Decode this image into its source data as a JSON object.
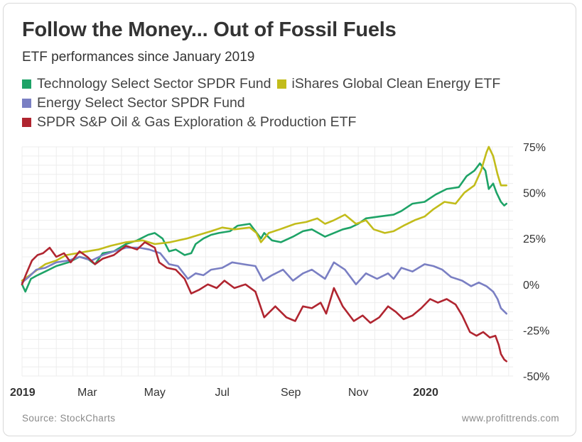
{
  "title": "Follow the Money... Out of Fossil Fuels",
  "subtitle": "ETF performances since January 2019",
  "footer": {
    "source": "Source: StockCharts",
    "website": "www.profittrends.com"
  },
  "chart_data": {
    "type": "line",
    "title": "Follow the Money... Out of Fossil Fuels",
    "subtitle": "ETF performances since January 2019",
    "legend_placement": "top-left",
    "grid": true,
    "xlim": [
      "2019-01-01",
      "2020-03-20"
    ],
    "ylim": [
      -50,
      75
    ],
    "x_ticks": [
      {
        "date": "2019-01-01",
        "label": "2019",
        "bold": true
      },
      {
        "date": "2019-03-01",
        "label": "Mar",
        "bold": false
      },
      {
        "date": "2019-05-01",
        "label": "May",
        "bold": false
      },
      {
        "date": "2019-07-01",
        "label": "Jul",
        "bold": false
      },
      {
        "date": "2019-09-01",
        "label": "Sep",
        "bold": false
      },
      {
        "date": "2019-11-01",
        "label": "Nov",
        "bold": false
      },
      {
        "date": "2020-01-01",
        "label": "2020",
        "bold": true
      }
    ],
    "y_ticks": [
      {
        "value": 75,
        "label": "75%"
      },
      {
        "value": 50,
        "label": "50%"
      },
      {
        "value": 25,
        "label": "25%"
      },
      {
        "value": 0,
        "label": "0%"
      },
      {
        "value": -25,
        "label": "-25%"
      },
      {
        "value": -50,
        "label": "-50%"
      }
    ],
    "series": [
      {
        "name": "Technology Select Sector SPDR Fund",
        "color": "#1ea367",
        "points": [
          [
            "2019-01-01",
            0
          ],
          [
            "2019-01-04",
            -4
          ],
          [
            "2019-01-09",
            3
          ],
          [
            "2019-01-15",
            5
          ],
          [
            "2019-01-22",
            7
          ],
          [
            "2019-02-01",
            10
          ],
          [
            "2019-02-12",
            12
          ],
          [
            "2019-02-22",
            15
          ],
          [
            "2019-03-01",
            14
          ],
          [
            "2019-03-08",
            11
          ],
          [
            "2019-03-15",
            17
          ],
          [
            "2019-03-25",
            18
          ],
          [
            "2019-04-05",
            22
          ],
          [
            "2019-04-15",
            24
          ],
          [
            "2019-04-25",
            27
          ],
          [
            "2019-05-01",
            28
          ],
          [
            "2019-05-08",
            25
          ],
          [
            "2019-05-14",
            18
          ],
          [
            "2019-05-20",
            19
          ],
          [
            "2019-05-28",
            16
          ],
          [
            "2019-06-03",
            17
          ],
          [
            "2019-06-07",
            22
          ],
          [
            "2019-06-14",
            25
          ],
          [
            "2019-06-21",
            27
          ],
          [
            "2019-06-28",
            28
          ],
          [
            "2019-07-08",
            29
          ],
          [
            "2019-07-15",
            32
          ],
          [
            "2019-07-26",
            33
          ],
          [
            "2019-08-05",
            25
          ],
          [
            "2019-08-08",
            28
          ],
          [
            "2019-08-15",
            24
          ],
          [
            "2019-08-23",
            23
          ],
          [
            "2019-09-03",
            26
          ],
          [
            "2019-09-12",
            29
          ],
          [
            "2019-09-20",
            30
          ],
          [
            "2019-10-02",
            26
          ],
          [
            "2019-10-10",
            28
          ],
          [
            "2019-10-18",
            30
          ],
          [
            "2019-10-25",
            31
          ],
          [
            "2019-11-01",
            33
          ],
          [
            "2019-11-08",
            36
          ],
          [
            "2019-11-20",
            37
          ],
          [
            "2019-12-03",
            38
          ],
          [
            "2019-12-10",
            40
          ],
          [
            "2019-12-20",
            44
          ],
          [
            "2019-12-31",
            45
          ],
          [
            "2020-01-10",
            49
          ],
          [
            "2020-01-20",
            52
          ],
          [
            "2020-01-31",
            53
          ],
          [
            "2020-02-07",
            59
          ],
          [
            "2020-02-14",
            62
          ],
          [
            "2020-02-19",
            66
          ],
          [
            "2020-02-24",
            62
          ],
          [
            "2020-02-27",
            52
          ],
          [
            "2020-03-02",
            55
          ],
          [
            "2020-03-05",
            50
          ],
          [
            "2020-03-09",
            45
          ],
          [
            "2020-03-12",
            43
          ],
          [
            "2020-03-14",
            44
          ]
        ]
      },
      {
        "name": "iShares Global Clean Energy ETF",
        "color": "#c2bc1a",
        "points": [
          [
            "2019-01-01",
            2
          ],
          [
            "2019-01-08",
            5
          ],
          [
            "2019-01-15",
            8
          ],
          [
            "2019-01-22",
            11
          ],
          [
            "2019-02-01",
            13
          ],
          [
            "2019-02-10",
            16
          ],
          [
            "2019-02-20",
            17
          ],
          [
            "2019-03-01",
            18
          ],
          [
            "2019-03-11",
            19
          ],
          [
            "2019-03-22",
            21
          ],
          [
            "2019-04-05",
            23
          ],
          [
            "2019-04-20",
            24
          ],
          [
            "2019-05-01",
            22
          ],
          [
            "2019-05-15",
            23
          ],
          [
            "2019-05-30",
            25
          ],
          [
            "2019-06-10",
            27
          ],
          [
            "2019-06-21",
            29
          ],
          [
            "2019-07-01",
            31
          ],
          [
            "2019-07-12",
            30
          ],
          [
            "2019-07-26",
            31
          ],
          [
            "2019-08-01",
            28
          ],
          [
            "2019-08-05",
            23
          ],
          [
            "2019-08-12",
            28
          ],
          [
            "2019-08-22",
            30
          ],
          [
            "2019-09-05",
            33
          ],
          [
            "2019-09-15",
            34
          ],
          [
            "2019-09-25",
            36
          ],
          [
            "2019-10-02",
            33
          ],
          [
            "2019-10-10",
            35
          ],
          [
            "2019-10-20",
            38
          ],
          [
            "2019-10-30",
            33
          ],
          [
            "2019-11-08",
            35
          ],
          [
            "2019-11-15",
            30
          ],
          [
            "2019-11-25",
            28
          ],
          [
            "2019-12-03",
            29
          ],
          [
            "2019-12-12",
            32
          ],
          [
            "2019-12-22",
            35
          ],
          [
            "2019-12-31",
            37
          ],
          [
            "2020-01-08",
            41
          ],
          [
            "2020-01-18",
            45
          ],
          [
            "2020-01-28",
            44
          ],
          [
            "2020-02-05",
            50
          ],
          [
            "2020-02-14",
            54
          ],
          [
            "2020-02-20",
            62
          ],
          [
            "2020-02-25",
            72
          ],
          [
            "2020-02-27",
            75
          ],
          [
            "2020-03-02",
            70
          ],
          [
            "2020-03-06",
            60
          ],
          [
            "2020-03-09",
            54
          ],
          [
            "2020-03-14",
            54
          ]
        ]
      },
      {
        "name": "Energy Select Sector SPDR Fund",
        "color": "#7a7fc3",
        "points": [
          [
            "2019-01-01",
            1
          ],
          [
            "2019-01-07",
            4
          ],
          [
            "2019-01-14",
            8
          ],
          [
            "2019-01-22",
            9
          ],
          [
            "2019-02-01",
            12
          ],
          [
            "2019-02-12",
            13
          ],
          [
            "2019-02-22",
            15
          ],
          [
            "2019-03-05",
            13
          ],
          [
            "2019-03-15",
            16
          ],
          [
            "2019-03-25",
            18
          ],
          [
            "2019-04-05",
            20
          ],
          [
            "2019-04-17",
            20
          ],
          [
            "2019-04-26",
            19
          ],
          [
            "2019-05-06",
            17
          ],
          [
            "2019-05-14",
            11
          ],
          [
            "2019-05-22",
            10
          ],
          [
            "2019-05-31",
            3
          ],
          [
            "2019-06-07",
            6
          ],
          [
            "2019-06-14",
            5
          ],
          [
            "2019-06-21",
            8
          ],
          [
            "2019-07-01",
            9
          ],
          [
            "2019-07-10",
            12
          ],
          [
            "2019-07-20",
            11
          ],
          [
            "2019-07-31",
            10
          ],
          [
            "2019-08-07",
            2
          ],
          [
            "2019-08-15",
            5
          ],
          [
            "2019-08-25",
            8
          ],
          [
            "2019-09-03",
            2
          ],
          [
            "2019-09-12",
            6
          ],
          [
            "2019-09-20",
            8
          ],
          [
            "2019-10-02",
            3
          ],
          [
            "2019-10-10",
            12
          ],
          [
            "2019-10-20",
            8
          ],
          [
            "2019-10-30",
            0
          ],
          [
            "2019-11-08",
            6
          ],
          [
            "2019-11-18",
            3
          ],
          [
            "2019-11-28",
            6
          ],
          [
            "2019-12-03",
            3
          ],
          [
            "2019-12-10",
            9
          ],
          [
            "2019-12-20",
            7
          ],
          [
            "2019-12-31",
            11
          ],
          [
            "2020-01-08",
            10
          ],
          [
            "2020-01-16",
            8
          ],
          [
            "2020-01-24",
            4
          ],
          [
            "2020-02-03",
            2
          ],
          [
            "2020-02-11",
            -1
          ],
          [
            "2020-02-18",
            1
          ],
          [
            "2020-02-25",
            -1
          ],
          [
            "2020-03-02",
            -4
          ],
          [
            "2020-03-06",
            -8
          ],
          [
            "2020-03-09",
            -13
          ],
          [
            "2020-03-14",
            -16
          ]
        ]
      },
      {
        "name": "SPDR S&P Oil & Gas Exploration & Production ETF",
        "color": "#b02530",
        "points": [
          [
            "2019-01-01",
            0
          ],
          [
            "2019-01-05",
            6
          ],
          [
            "2019-01-10",
            13
          ],
          [
            "2019-01-15",
            16
          ],
          [
            "2019-01-20",
            17
          ],
          [
            "2019-01-26",
            20
          ],
          [
            "2019-02-01",
            15
          ],
          [
            "2019-02-08",
            17
          ],
          [
            "2019-02-14",
            12
          ],
          [
            "2019-02-22",
            18
          ],
          [
            "2019-03-01",
            15
          ],
          [
            "2019-03-08",
            11
          ],
          [
            "2019-03-15",
            14
          ],
          [
            "2019-03-25",
            16
          ],
          [
            "2019-04-05",
            21
          ],
          [
            "2019-04-15",
            19
          ],
          [
            "2019-04-22",
            23
          ],
          [
            "2019-05-01",
            20
          ],
          [
            "2019-05-05",
            12
          ],
          [
            "2019-05-12",
            9
          ],
          [
            "2019-05-20",
            8
          ],
          [
            "2019-05-28",
            3
          ],
          [
            "2019-06-03",
            -5
          ],
          [
            "2019-06-10",
            -3
          ],
          [
            "2019-06-18",
            0
          ],
          [
            "2019-06-26",
            -2
          ],
          [
            "2019-07-03",
            2
          ],
          [
            "2019-07-12",
            -2
          ],
          [
            "2019-07-22",
            0
          ],
          [
            "2019-07-31",
            -4
          ],
          [
            "2019-08-08",
            -18
          ],
          [
            "2019-08-18",
            -12
          ],
          [
            "2019-08-28",
            -18
          ],
          [
            "2019-09-05",
            -20
          ],
          [
            "2019-09-12",
            -12
          ],
          [
            "2019-09-20",
            -13
          ],
          [
            "2019-09-28",
            -10
          ],
          [
            "2019-10-03",
            -16
          ],
          [
            "2019-10-10",
            -2
          ],
          [
            "2019-10-18",
            -12
          ],
          [
            "2019-10-28",
            -20
          ],
          [
            "2019-11-05",
            -17
          ],
          [
            "2019-11-12",
            -21
          ],
          [
            "2019-11-20",
            -18
          ],
          [
            "2019-11-28",
            -12
          ],
          [
            "2019-12-05",
            -15
          ],
          [
            "2019-12-12",
            -19
          ],
          [
            "2019-12-20",
            -17
          ],
          [
            "2019-12-28",
            -13
          ],
          [
            "2020-01-05",
            -8
          ],
          [
            "2020-01-12",
            -10
          ],
          [
            "2020-01-20",
            -8
          ],
          [
            "2020-01-28",
            -11
          ],
          [
            "2020-02-03",
            -17
          ],
          [
            "2020-02-10",
            -26
          ],
          [
            "2020-02-16",
            -28
          ],
          [
            "2020-02-22",
            -26
          ],
          [
            "2020-02-28",
            -29
          ],
          [
            "2020-03-04",
            -28
          ],
          [
            "2020-03-07",
            -33
          ],
          [
            "2020-03-09",
            -38
          ],
          [
            "2020-03-12",
            -41
          ],
          [
            "2020-03-14",
            -42
          ]
        ]
      }
    ]
  }
}
